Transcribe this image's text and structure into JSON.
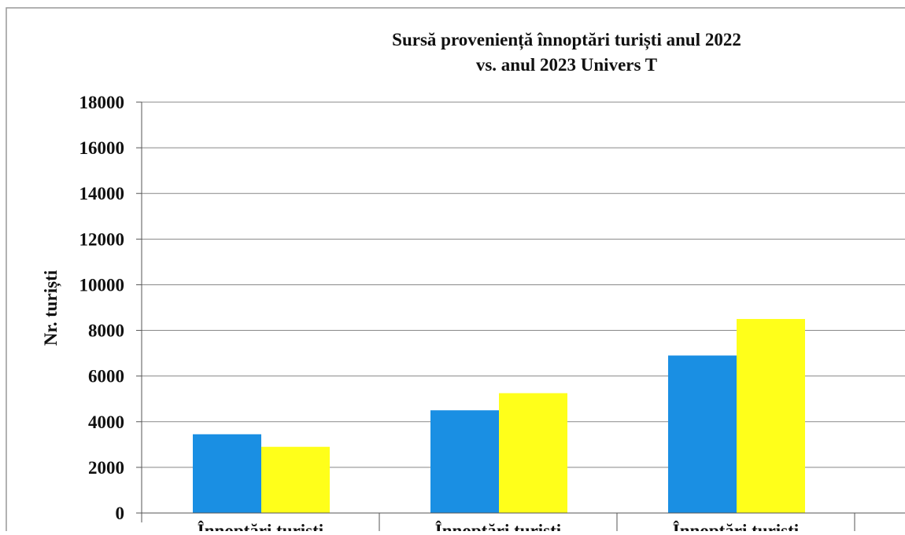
{
  "chart_data": {
    "type": "bar",
    "title": [
      "Sursă proveniență înnoptări turiști anul 2022",
      "vs. anul 2023 Univers T"
    ],
    "y_label": "Nr. turiști",
    "categories": [
      "Înnoptări turiști",
      "Înnoptări turiști",
      "Înnoptări turiști"
    ],
    "series": [
      {
        "color": "#1a8fe3",
        "values": [
          3450,
          4500,
          6900
        ]
      },
      {
        "color": "#ffff1a",
        "values": [
          2900,
          5250,
          8500
        ]
      }
    ],
    "ylim": [
      0,
      18000
    ],
    "yticks": [
      0,
      2000,
      4000,
      6000,
      8000,
      10000,
      12000,
      14000,
      16000,
      18000
    ],
    "grid": true
  }
}
